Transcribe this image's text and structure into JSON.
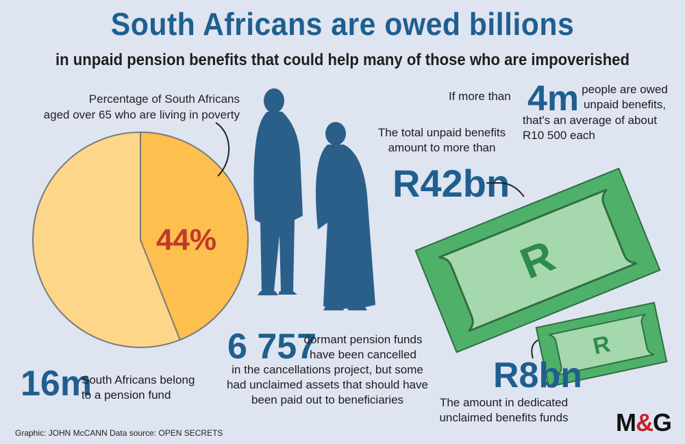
{
  "header": {
    "title": "South Africans are owed billions",
    "subtitle": "in unpaid pension benefits that could help many of those who are impoverished"
  },
  "pie": {
    "caption_line1": "Percentage of South Africans",
    "caption_line2": "aged over 65 who are living in poverty",
    "percent_value": 44,
    "percent_label": "44%",
    "colors": {
      "highlight": "#fdbf4e",
      "rest": "#fdd68a",
      "label": "#c0392b"
    }
  },
  "stats": {
    "members": {
      "value": "16m",
      "line1": "South Africans belong",
      "line2": "to a pension fund"
    },
    "dormant": {
      "value": "6 757",
      "line1": "dormant pension funds",
      "line2": "have been cancelled",
      "line3": "in the cancellations project, but some",
      "line4": "had unclaimed assets that should have",
      "line5": "been paid out to beneficiaries"
    },
    "total": {
      "line1": "The total unpaid benefits",
      "line2": "amount to more than",
      "value": "R42bn"
    },
    "people": {
      "prefix": "If more than",
      "value": "4m",
      "line1": "people are owed",
      "line2": "unpaid benefits,",
      "line3": "that's an average of about",
      "line4": "R10 500 each"
    },
    "dedicated": {
      "value": "R8bn",
      "line1": "The amount in dedicated",
      "line2": "unclaimed benefits funds"
    }
  },
  "banknotes": {
    "symbol": "R",
    "colors": {
      "outer": "#4fb06a",
      "inner": "#a6d8ae",
      "symbol": "#2f8a4e"
    }
  },
  "footer": {
    "credit": "Graphic: JOHN McCANN  Data source: OPEN SECRETS"
  },
  "logo": {
    "left": "M",
    "amp": "&",
    "right": "G"
  },
  "colors": {
    "accent": "#1e5f8f",
    "background": "#dfe4f1",
    "silhouette": "#2a5f8a"
  }
}
